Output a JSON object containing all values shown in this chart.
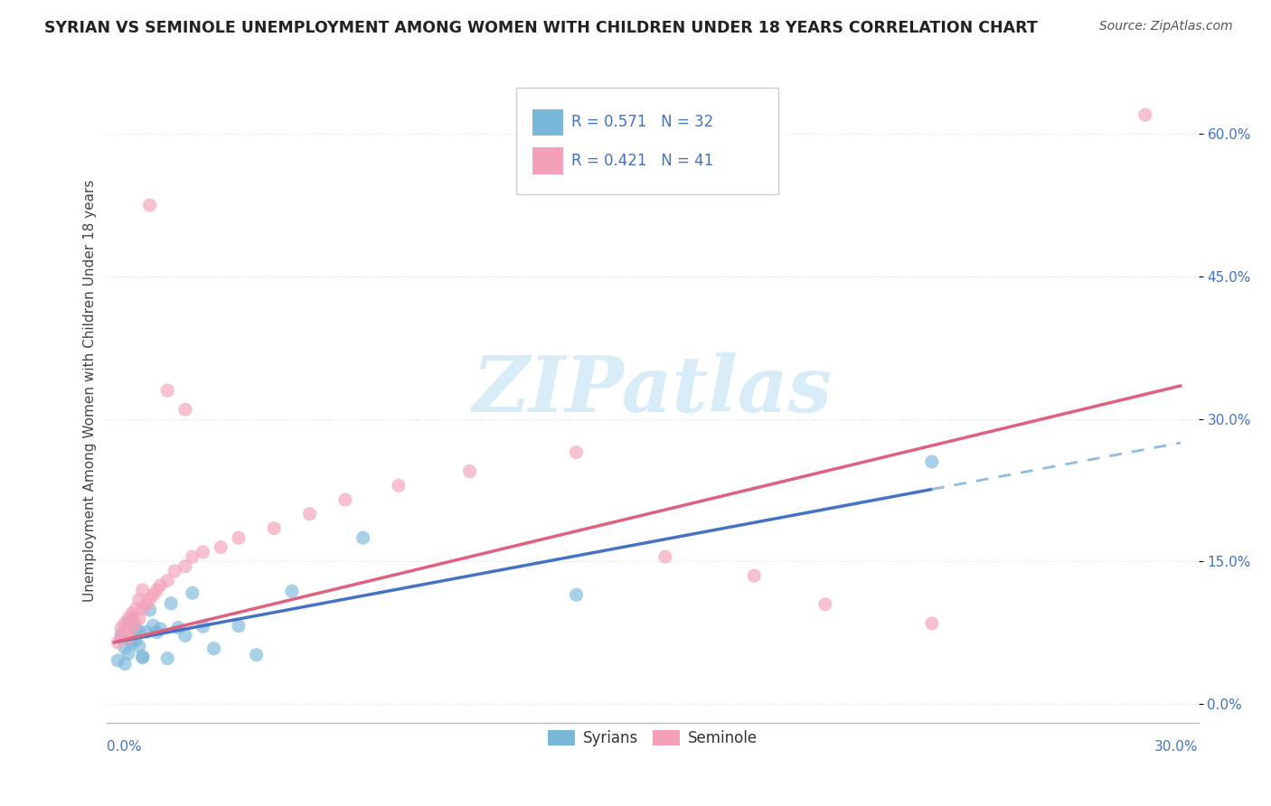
{
  "title": "SYRIAN VS SEMINOLE UNEMPLOYMENT AMONG WOMEN WITH CHILDREN UNDER 18 YEARS CORRELATION CHART",
  "source": "Source: ZipAtlas.com",
  "ylabel": "Unemployment Among Women with Children Under 18 years",
  "xlim": [
    -0.002,
    0.305
  ],
  "ylim": [
    -0.02,
    0.68
  ],
  "ytick_vals": [
    0.0,
    0.15,
    0.3,
    0.45,
    0.6
  ],
  "ytick_labels": [
    "0.0%",
    "15.0%",
    "30.0%",
    "45.0%",
    "60.0%"
  ],
  "syrian_color": "#7ab8d9",
  "seminole_color": "#f4a0b8",
  "syrian_line_color": "#4472c4",
  "seminole_line_color": "#e06080",
  "syrian_dash_color": "#90bce0",
  "watermark_color": "#cde8f5",
  "title_color": "#222222",
  "source_color": "#555555",
  "tick_color": "#4472c4",
  "ylabel_color": "#444444",
  "grid_color": "#dddddd",
  "legend_r_syrian": "R = 0.571",
  "legend_n_syrian": "N = 32",
  "legend_r_seminole": "R = 0.421",
  "legend_n_seminole": "N = 41",
  "syrian_line_end_x": 0.23,
  "syrian_intercept": 0.065,
  "syrian_slope": 0.7,
  "seminole_intercept": 0.065,
  "seminole_slope": 0.9,
  "title_fontsize": 12.5,
  "source_fontsize": 10,
  "ylabel_fontsize": 11,
  "tick_fontsize": 11
}
